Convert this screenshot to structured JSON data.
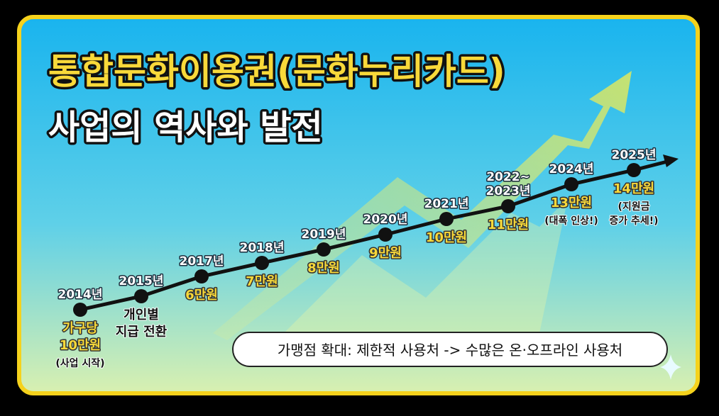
{
  "title": {
    "line1": "통합문화이용권(문화누리카드)",
    "line2": "사업의 역사와 발전"
  },
  "milestones": [
    {
      "year": [
        "2014년"
      ],
      "lines": [
        "가구당",
        "10만원",
        "(사업 시작)"
      ]
    },
    {
      "year": [
        "2015년"
      ],
      "lines": [
        "개인별",
        "지급 전환"
      ]
    },
    {
      "year": [
        "2017년"
      ],
      "lines": [
        "6만원"
      ]
    },
    {
      "year": [
        "2018년"
      ],
      "lines": [
        "7만원"
      ]
    },
    {
      "year": [
        "2019년"
      ],
      "lines": [
        "8만원"
      ]
    },
    {
      "year": [
        "2020년"
      ],
      "lines": [
        "9만원"
      ]
    },
    {
      "year": [
        "2021년"
      ],
      "lines": [
        "10만원"
      ]
    },
    {
      "year": [
        "2022~",
        "2023년"
      ],
      "lines": [
        "11만원"
      ]
    },
    {
      "year": [
        "2024년"
      ],
      "lines": [
        "13만원",
        "(대폭 인상!)"
      ]
    },
    {
      "year": [
        "2025년"
      ],
      "lines": [
        "14만원",
        "(지원금",
        "증가 추세!)"
      ]
    }
  ],
  "note": "가맹점 확대: 제한적 사용처 -> 수많은 온·오프라인 사용처"
}
